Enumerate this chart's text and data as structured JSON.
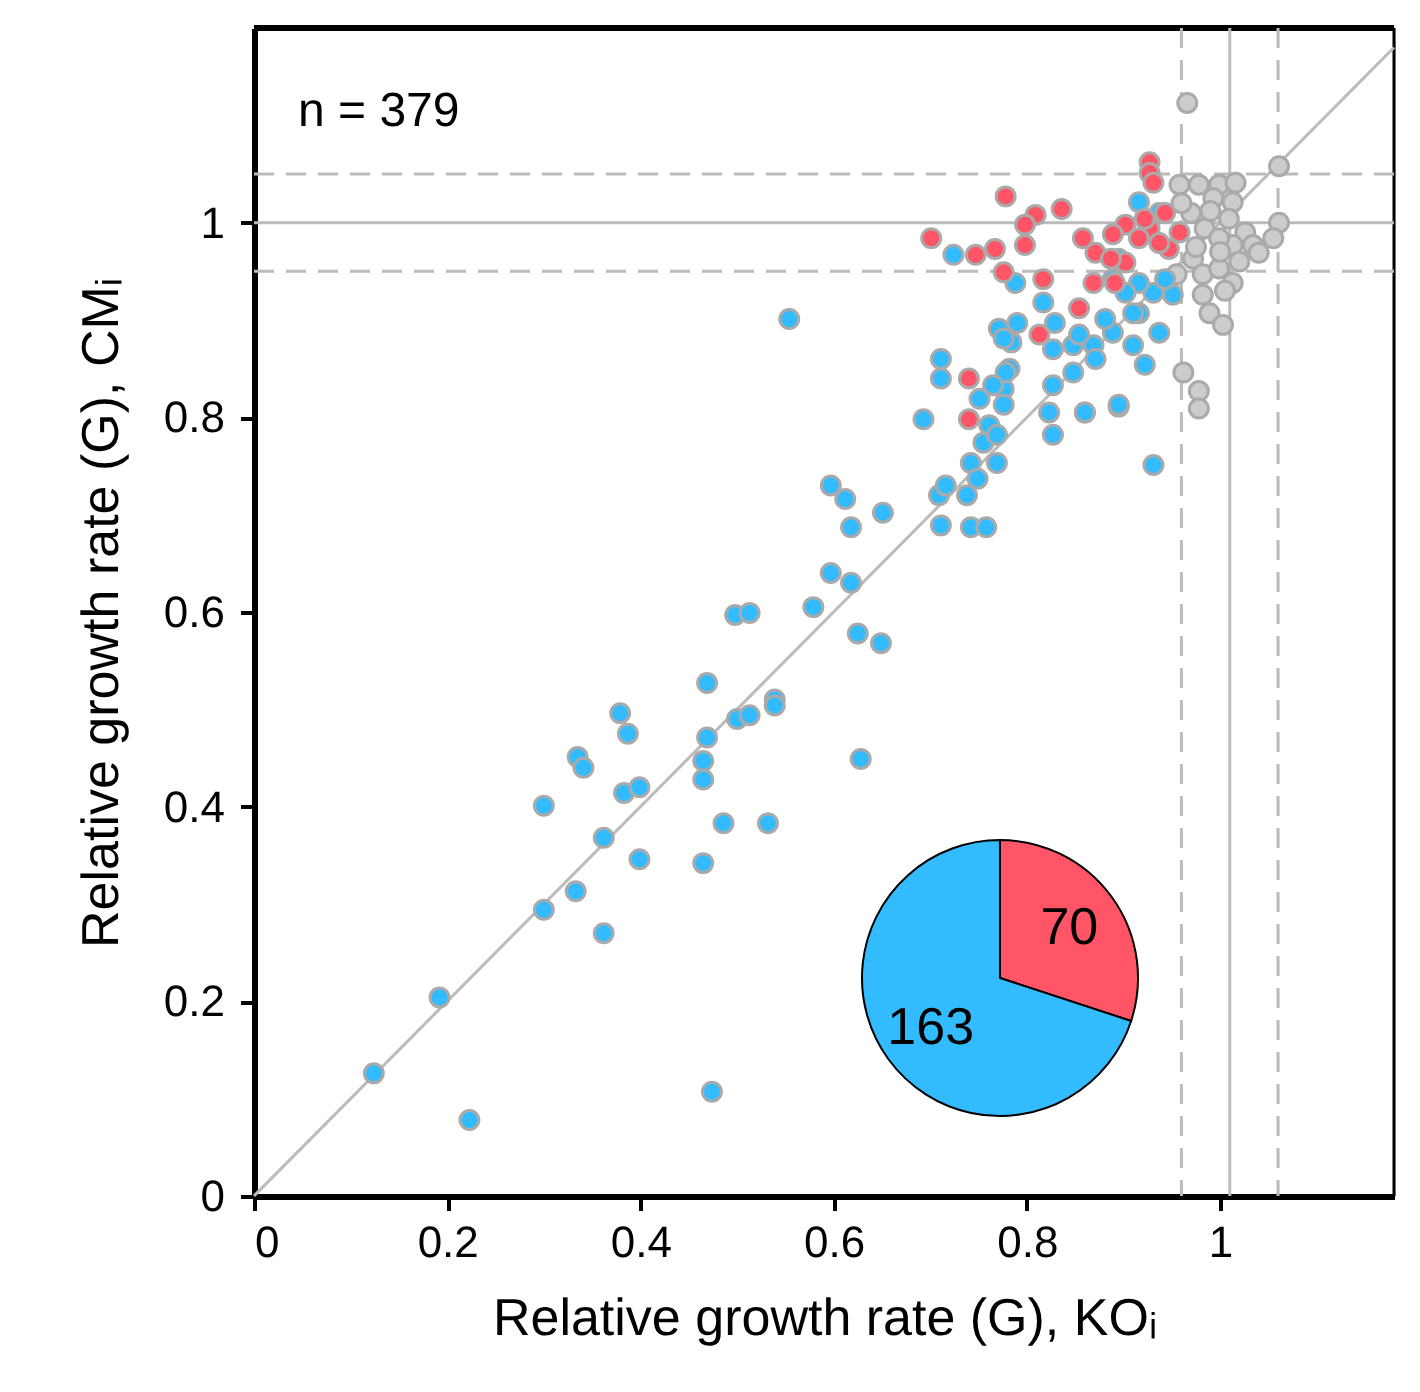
{
  "chart_data": [
    {
      "type": "scatter",
      "xlabel": "Relative growth rate (G), KOᵢ",
      "ylabel": "Relative growth rate (G), CMᵢ",
      "xlim": [
        0,
        1.18
      ],
      "ylim": [
        0,
        1.2
      ],
      "xticks": [
        0,
        0.2,
        0.4,
        0.6,
        0.8,
        1
      ],
      "yticks": [
        0,
        0.2,
        0.4,
        0.6,
        0.8,
        1
      ],
      "grid": false,
      "marker": "circle",
      "annotations": [
        "n = 379"
      ],
      "ref_lines": [
        {
          "axis": "y",
          "value": 1,
          "color": "#bbbbbb",
          "line_style": "solid"
        },
        {
          "axis": "y",
          "value": 0.95,
          "color": "#bbbbbb",
          "line_style": "dashed"
        },
        {
          "axis": "y",
          "value": 1.05,
          "color": "#bbbbbb",
          "line_style": "dashed"
        },
        {
          "axis": "x",
          "value": 1.01,
          "color": "#bbbbbb",
          "line_style": "solid"
        },
        {
          "axis": "x",
          "value": 0.96,
          "color": "#bbbbbb",
          "line_style": "dashed"
        },
        {
          "axis": "x",
          "value": 1.06,
          "color": "#bbbbbb",
          "line_style": "dashed"
        }
      ],
      "series": [
        {
          "type": "line",
          "color": "#bbbbbb",
          "marker": "none",
          "x": [
            0,
            1.18
          ],
          "values": [
            0,
            1.18
          ]
        },
        {
          "color": "#cccccc",
          "x": [
            0.966,
            1.061,
            0.958,
            0.978,
            0.999,
            1.016,
            0.993,
            1.013,
            0.984,
            1.009,
            1.026,
            1.061,
            1.055,
            1.034,
            1.04,
            1.013,
            0.972,
            0.955,
            0.982,
            0.999,
            1.013,
            0.982,
            0.989,
            1.003,
            0.962,
            0.978,
            0.978,
            0.999,
            0.97,
            0.99,
            1.0,
            1.02,
            0.975,
            0.96,
            1.005
          ],
          "values": [
            1.123,
            1.058,
            1.039,
            1.039,
            1.039,
            1.041,
            1.025,
            1.021,
            0.994,
            1.004,
            0.99,
            1.0,
            0.984,
            0.977,
            0.969,
            0.977,
            0.963,
            0.947,
            0.947,
            0.953,
            0.938,
            0.926,
            0.907,
            0.895,
            0.846,
            0.827,
            0.809,
            0.984,
            1.01,
            1.012,
            0.97,
            0.96,
            0.975,
            1.02,
            0.93
          ]
        },
        {
          "color": "#33bbff",
          "x": [
            0.124,
            0.192,
            0.223,
            0.3,
            0.3,
            0.335,
            0.341,
            0.333,
            0.362,
            0.362,
            0.379,
            0.387,
            0.383,
            0.399,
            0.399,
            0.469,
            0.469,
            0.465,
            0.465,
            0.465,
            0.474,
            0.486,
            0.5,
            0.513,
            0.498,
            0.513,
            0.532,
            0.539,
            0.539,
            0.579,
            0.597,
            0.612,
            0.618,
            0.597,
            0.618,
            0.625,
            0.628,
            0.651,
            0.649,
            0.554,
            0.711,
            0.709,
            0.716,
            0.742,
            0.758,
            0.738,
            0.742,
            0.749,
            0.769,
            0.755,
            0.761,
            0.769,
            0.693,
            0.711,
            0.711,
            0.776,
            0.782,
            0.784,
            0.771,
            0.79,
            0.827,
            0.86,
            0.895,
            0.931,
            0.724,
            0.788,
            0.817,
            0.776,
            0.827,
            0.848,
            0.869,
            0.889,
            0.91,
            0.922,
            0.937,
            0.916,
            0.931,
            0.951,
            0.943,
            0.916,
            0.902,
            0.889,
            0.895,
            0.916,
            0.937,
            0.871,
            0.827,
            0.848,
            0.86,
            0.895,
            0.823,
            0.778,
            0.765,
            0.751,
            0.776,
            0.829,
            0.854,
            0.881,
            0.91
          ],
          "values": [
            0.126,
            0.204,
            0.078,
            0.401,
            0.294,
            0.451,
            0.44,
            0.313,
            0.368,
            0.27,
            0.496,
            0.475,
            0.414,
            0.42,
            0.346,
            0.527,
            0.471,
            0.428,
            0.447,
            0.342,
            0.107,
            0.383,
            0.49,
            0.494,
            0.597,
            0.599,
            0.383,
            0.51,
            0.504,
            0.605,
            0.73,
            0.716,
            0.687,
            0.64,
            0.63,
            0.578,
            0.449,
            0.702,
            0.568,
            0.901,
            0.689,
            0.72,
            0.73,
            0.687,
            0.687,
            0.72,
            0.753,
            0.737,
            0.753,
            0.774,
            0.792,
            0.782,
            0.798,
            0.84,
            0.86,
            0.829,
            0.85,
            0.877,
            0.891,
            0.897,
            0.782,
            0.805,
            0.811,
            0.751,
            0.967,
            0.938,
            0.918,
            0.881,
            0.87,
            0.874,
            0.874,
            0.887,
            0.874,
            0.854,
            0.887,
            0.907,
            0.928,
            0.926,
            0.942,
            0.938,
            0.928,
            0.942,
            0.963,
            1.021,
            1.01,
            0.86,
            0.833,
            0.846,
            0.805,
            0.813,
            0.805,
            0.846,
            0.833,
            0.819,
            0.813,
            0.897,
            0.885,
            0.901,
            0.907
          ]
        },
        {
          "color": "#ff5566",
          "x": [
            0.778,
            0.809,
            0.798,
            0.836,
            0.767,
            0.798,
            0.776,
            0.858,
            0.871,
            0.817,
            0.869,
            0.891,
            0.854,
            0.813,
            0.927,
            0.927,
            0.931,
            0.902,
            0.927,
            0.943,
            0.958,
            0.947,
            0.902,
            0.922,
            0.916,
            0.937,
            0.74,
            0.74,
            0.889,
            0.747,
            0.887,
            0.701
          ],
          "values": [
            1.027,
            1.008,
            0.998,
            1.014,
            0.973,
            0.977,
            0.949,
            0.984,
            0.969,
            0.942,
            0.938,
            0.938,
            0.912,
            0.885,
            1.062,
            1.051,
            1.041,
            0.998,
            0.994,
            1.01,
            0.99,
            0.973,
            0.959,
            1.004,
            0.984,
            0.979,
            0.84,
            0.798,
            0.988,
            0.967,
            0.963,
            0.984
          ]
        }
      ]
    },
    {
      "type": "pie",
      "categories": [
        null,
        null
      ],
      "values": [
        70,
        163
      ],
      "colors": [
        "#ff5566",
        "#33bbff"
      ],
      "data_labels": true
    }
  ]
}
